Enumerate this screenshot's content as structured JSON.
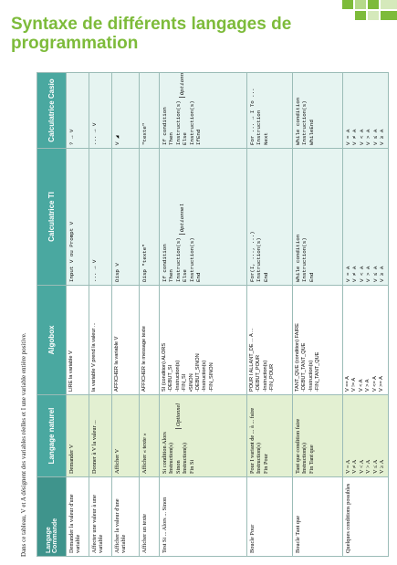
{
  "title": "Syntaxe de différents langages de programmation",
  "note": "Dans ce tableau, V et A désignent des variables réelles et I une variable entière positive.",
  "table": {
    "corner_top": "Langage",
    "corner_bottom": "Commande",
    "headers": [
      "Langage naturel",
      "Algobox",
      "Calculatrice TI",
      "Calculatrice Casio"
    ],
    "rows": [
      {
        "command": "Demander la valeur d'une variable",
        "cells": [
          [
            "Demander V"
          ],
          [
            "LIRE la variable V"
          ],
          [
            "Input V ou Prompt V"
          ],
          [
            "? → V"
          ]
        ]
      },
      {
        "command": "Affecter une valeur à une variable",
        "cells": [
          [
            "Donner à V la valeur ..."
          ],
          [
            "la variable V prend la valeur ..."
          ],
          [
            "... → V"
          ],
          [
            "... → V"
          ]
        ]
      },
      {
        "command": "Afficher la valeur d'une variable",
        "cells": [
          [
            "Afficher V"
          ],
          [
            "AFFICHER la variable V"
          ],
          [
            "Disp V"
          ],
          [
            "V ◢"
          ]
        ]
      },
      {
        "command": "Afficher un texte",
        "cells": [
          [
            "Afficher « texte »"
          ],
          [
            "AFFICHER le message texte"
          ],
          [
            "Disp \"texte\""
          ],
          [
            "\"texte\""
          ]
        ]
      },
      {
        "command": "Test Si ... Alors ... Sinon",
        "cells": [
          {
            "lines": [
              "Si condition Alors",
              "Instruction(s)",
              "Sinon",
              "Instruction(s)",
              "Fin Si"
            ],
            "aside": "Optionnel"
          },
          [
            "SI (condition) ALORS",
            "-DEBUT_SI",
            "-Instruction(s)",
            "-FIN_SI",
            "•SINON",
            "-DEBUT_SINON",
            "-Instruction(s)",
            "-FIN_SINON"
          ],
          {
            "lines": [
              "If condition",
              "Then",
              "Instruction(s)",
              "Else",
              "Instruction(s)",
              "End"
            ],
            "aside": "Optionnel"
          },
          {
            "lines": [
              "If condition",
              "Then Instruction(s)",
              "Else Instruction(s)",
              "IfEnd"
            ],
            "aside": "Optionnel"
          }
        ]
      },
      {
        "command": "Boucle Pour",
        "cells": [
          [
            "Pour I variant de ... à ... faire",
            "Instruction(s)",
            "Fin Pour"
          ],
          [
            "POUR I ALLANT_DE ... A ...",
            "-DEBUT_POUR",
            "-Instruction(s)",
            "-FIN_POUR"
          ],
          [
            "For(I, ..., ...)",
            "Instruction(s)",
            "End"
          ],
          [
            "For ... → I To ...",
            "Instruction",
            "Next"
          ]
        ]
      },
      {
        "command": "Boucle Tant que",
        "cells": [
          [
            "Tant que condition faire",
            "Instruction(s)",
            "Fin Tant que"
          ],
          [
            "TANT_QUE (condition) FAIRE",
            "-DEBUT_TANT_QUE",
            "-Instruction(s)",
            "-FIN_TANT_QUE"
          ],
          [
            "While condition",
            "Instruction(s)",
            "End"
          ],
          [
            "While condition",
            "Instruction(s)",
            "WhileEnd"
          ]
        ]
      },
      {
        "command": "Quelques conditions possibles",
        "cells": [
          [
            "V = A",
            "V ≠ A",
            "V < A",
            "V > A",
            "V ≤ A",
            "V ≥ A"
          ],
          [
            "V == A",
            "V != A",
            "V < A",
            "V > A",
            "V <= A",
            "V >= A"
          ],
          [
            "V = A",
            "V ≠ A",
            "V < A",
            "V > A",
            "V ≤ A",
            "V ≥ A"
          ],
          [
            "V = A",
            "V ≠ A",
            "V < A",
            "V > A",
            "V ≤ A",
            "V ≥ A"
          ]
        ]
      }
    ]
  }
}
